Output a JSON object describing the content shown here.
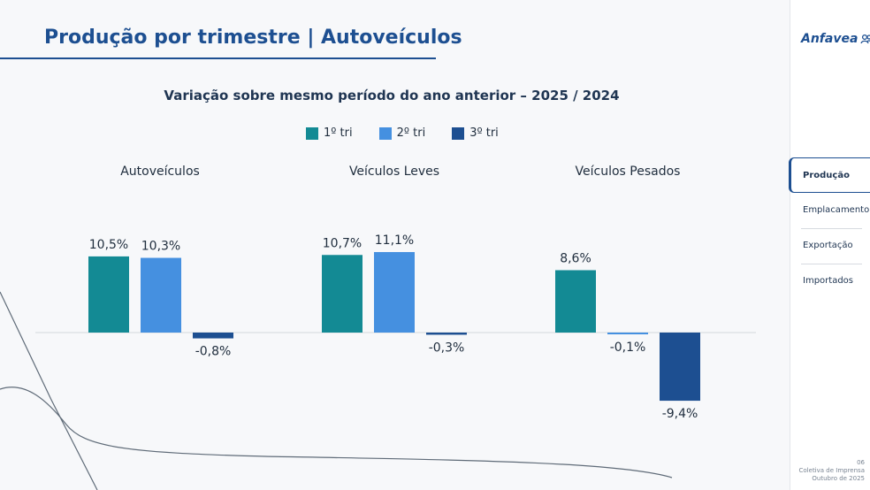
{
  "header": {
    "title": "Produção por trimestre | Autoveículos"
  },
  "colors": {
    "tri1": "#138a94",
    "tri2": "#4590e0",
    "tri3": "#1d4f91",
    "title": "#1d4f91"
  },
  "chart_data": {
    "type": "bar",
    "title": "Variação sobre mesmo período do ano anterior – 2025 / 2024",
    "legend_position": "top-center",
    "grid": false,
    "legend": [
      "1º tri",
      "2º tri",
      "3º tri"
    ],
    "groups": [
      {
        "name": "Autoveículos",
        "values": [
          10.5,
          10.3,
          -0.8
        ],
        "labels": [
          "10,5%",
          "10,3%",
          "-0,8%"
        ]
      },
      {
        "name": "Veículos Leves",
        "values": [
          10.7,
          11.1,
          -0.3
        ],
        "labels": [
          "10,7%",
          "11,1%",
          "-0,3%"
        ]
      },
      {
        "name": "Veículos Pesados",
        "values": [
          8.6,
          -0.1,
          -9.4
        ],
        "labels": [
          "8,6%",
          "-0,1%",
          "-9,4%"
        ]
      }
    ]
  },
  "sidebar": {
    "logo": "Anfavea",
    "items": [
      {
        "label": "Produção",
        "active": true
      },
      {
        "label": "Emplacamento",
        "active": false
      },
      {
        "label": "Exportação",
        "active": false
      },
      {
        "label": "Importados",
        "active": false
      }
    ]
  },
  "footer": {
    "page": "06",
    "line1": "Coletiva de Imprensa",
    "line2": "Outubro de 2025"
  }
}
